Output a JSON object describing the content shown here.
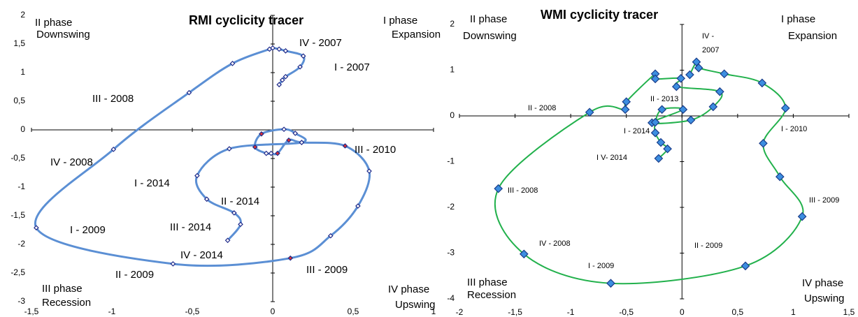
{
  "chart_data": [
    {
      "type": "line",
      "title": "RMI cyclicity tracer",
      "x": [
        0.04,
        0.06,
        0.08,
        0.17,
        0.19,
        0.08,
        0.04,
        0.0,
        -0.02,
        -0.25,
        -0.52,
        -0.99,
        -1.47,
        -0.62,
        0.11,
        0.36,
        0.53,
        0.6,
        0.45,
        0.18,
        0.1,
        0.03,
        -0.01,
        -0.04,
        -0.11,
        -0.07,
        0.07,
        0.14,
        0.18,
        -0.27,
        -0.47,
        -0.41,
        -0.24,
        -0.2,
        -0.28
      ],
      "values": [
        0.79,
        0.87,
        0.93,
        1.1,
        1.29,
        1.38,
        1.41,
        1.43,
        1.41,
        1.16,
        0.65,
        -0.34,
        -1.71,
        -2.34,
        -2.24,
        -1.85,
        -1.33,
        -0.72,
        -0.28,
        -0.22,
        -0.18,
        -0.41,
        -0.41,
        -0.41,
        -0.3,
        -0.07,
        0.01,
        -0.06,
        -0.22,
        -0.33,
        -0.8,
        -1.21,
        -1.45,
        -1.65,
        -1.93
      ],
      "color": "#5b8fd4",
      "marker_colors": [
        "#ffffff",
        "#ffffff",
        "#ffffff",
        "#ffffff",
        "#ffffff",
        "#ffffff",
        "#ffffff",
        "#ffffff",
        "#ffffff",
        "#ffffff",
        "#ffffff",
        "#ffffff",
        "#ffffff",
        "#ffffff",
        "#e03030",
        "#ffffff",
        "#ffffff",
        "#ffffff",
        "#e03030",
        "#ffffff",
        "#e03030",
        "#e03030",
        "#ffffff",
        "#ffffff",
        "#e03030",
        "#e03030",
        "#ffffff",
        "#ffffff",
        "#ffffff",
        "#ffffff",
        "#ffffff",
        "#ffffff",
        "#ffffff",
        "#ffffff",
        "#ffffff"
      ],
      "xlim": [
        -1.5,
        1
      ],
      "xticks": [
        {
          "value": -1.5,
          "label": "-1,5"
        },
        -1,
        {
          "value": -0.5,
          "label": "-0,5"
        },
        0,
        {
          "value": 0.5,
          "label": "0,5"
        },
        1
      ],
      "ylim": [
        -3,
        2
      ],
      "yticks": [
        -3,
        {
          "value": -2.5,
          "label": "-2,5"
        },
        -2,
        {
          "value": -1.5,
          "label": "-1,5"
        },
        -1,
        {
          "value": -0.5,
          "label": "-0,5"
        },
        0,
        {
          "value": 0.5,
          "label": "0,5"
        },
        1,
        {
          "value": 1.5,
          "label": "1,5"
        },
        2
      ],
      "quadrant_labels": [
        "II  phase",
        "Downswing",
        "I phase",
        "Expansion",
        "III phase",
        "Recession",
        "IV phase",
        "Upswing"
      ],
      "annotations": [
        "IV - 2007",
        "I - 2007",
        "III - 2008",
        "IV - 2008",
        "I - 2014",
        "II - 2014",
        "III - 2014",
        "I - 2009",
        "IV - 2014",
        "II - 2009",
        "III - 2009",
        "III - 2010"
      ]
    },
    {
      "type": "line",
      "title": "WMI cyclicity tracer",
      "x": [
        0.07,
        0.13,
        0.15,
        0.38,
        0.72,
        0.93,
        0.73,
        0.88,
        1.08,
        0.57,
        -0.64,
        -1.42,
        -1.65,
        -0.83,
        -0.51,
        -0.5,
        -0.24,
        -0.24,
        -0.01,
        -0.05,
        0.34,
        0.28,
        0.08,
        -0.27,
        0.01,
        -0.18,
        -0.24,
        -0.24,
        -0.19,
        -0.13,
        -0.21
      ],
      "values": [
        0.9,
        1.18,
        1.05,
        0.92,
        0.72,
        0.17,
        -0.6,
        -1.33,
        -2.2,
        -3.28,
        -3.66,
        -3.02,
        -1.59,
        0.08,
        0.14,
        0.31,
        0.92,
        0.81,
        0.82,
        0.64,
        0.53,
        0.2,
        -0.09,
        -0.15,
        0.14,
        0.14,
        -0.14,
        -0.37,
        -0.58,
        -0.72,
        -0.93
      ],
      "color": "#22b14c",
      "marker_color": "#3c8ee0",
      "xlim": [
        -2,
        1.5
      ],
      "xticks": [
        -2,
        {
          "value": -1.5,
          "label": "-1,5"
        },
        -1,
        {
          "value": -0.5,
          "label": "-0,5"
        },
        0,
        {
          "value": 0.5,
          "label": "0,5"
        },
        1,
        {
          "value": 1.5,
          "label": "1,5"
        }
      ],
      "ylim": [
        -4,
        2
      ],
      "yticks": [
        -4,
        -3,
        -2,
        -1,
        0,
        1,
        2
      ],
      "quadrant_labels": [
        "II phase",
        "Downswing",
        "I phase",
        "Expansion",
        "III phase",
        "Recession",
        "IV phase",
        "Upswing"
      ],
      "annotations": [
        "IV -",
        "2007",
        "II - 2008",
        "II - 2013",
        "I - 2014",
        "I V- 2014",
        "I - 2010",
        "III - 2008",
        "III - 2009",
        "IV - 2008",
        "II - 2009",
        "I - 2009"
      ]
    }
  ]
}
